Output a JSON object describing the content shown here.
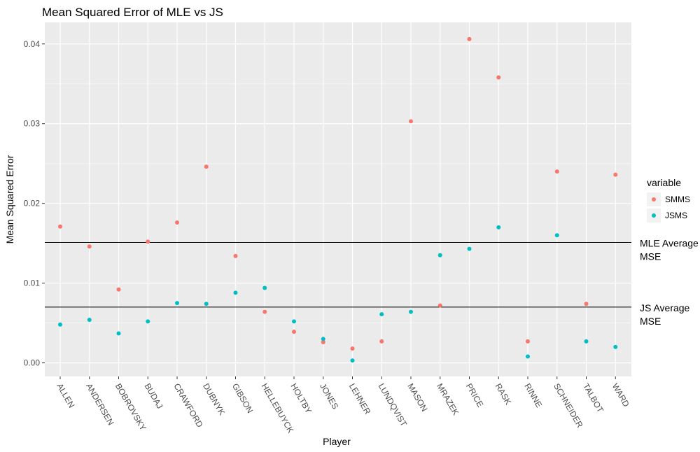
{
  "chart_data": {
    "type": "scatter",
    "title": "Mean Squared Error of MLE vs JS",
    "xlabel": "Player",
    "ylabel": "Mean Squared Error",
    "categories": [
      "ALLEN",
      "ANDERSEN",
      "BOBROVSKY",
      "BUDAJ",
      "CRAWFORD",
      "DUBNYK",
      "GIBSON",
      "HELLEBUYCK",
      "HOLTBY",
      "JONES",
      "LEHNER",
      "LUNDQVIST",
      "MASON",
      "MRAZEK",
      "PRICE",
      "RASK",
      "RINNE",
      "SCHNEIDER",
      "TALBOT",
      "WARD"
    ],
    "ylim": [
      -0.0017,
      0.0427
    ],
    "yticks": [
      0.0,
      0.01,
      0.02,
      0.03,
      0.04
    ],
    "ytick_labels": [
      "0.00",
      "0.01",
      "0.02",
      "0.03",
      "0.04"
    ],
    "grid": true,
    "legend": {
      "title": "variable",
      "position": "right"
    },
    "series": [
      {
        "name": "SMMS",
        "color": "#F8766D",
        "values": [
          0.0171,
          0.0146,
          0.0092,
          0.0152,
          0.0176,
          0.0246,
          0.0134,
          0.0064,
          0.0039,
          0.0026,
          0.0018,
          0.0027,
          0.0303,
          0.0072,
          0.0406,
          0.0358,
          0.0027,
          0.024,
          0.0074,
          0.0236
        ]
      },
      {
        "name": "JSMS",
        "color": "#00BFC4",
        "values": [
          0.0048,
          0.0054,
          0.0037,
          0.0052,
          0.0075,
          0.0074,
          0.0088,
          0.0094,
          0.0052,
          0.003,
          0.0003,
          0.0061,
          0.0064,
          0.0135,
          0.0143,
          0.017,
          0.0008,
          0.016,
          0.0027,
          0.002
        ]
      }
    ],
    "reference_lines": [
      {
        "value": 0.0151,
        "label_line1": "MLE Average",
        "label_line2": "MSE"
      },
      {
        "value": 0.007,
        "label_line1": "JS Average",
        "label_line2": "MSE"
      }
    ]
  }
}
